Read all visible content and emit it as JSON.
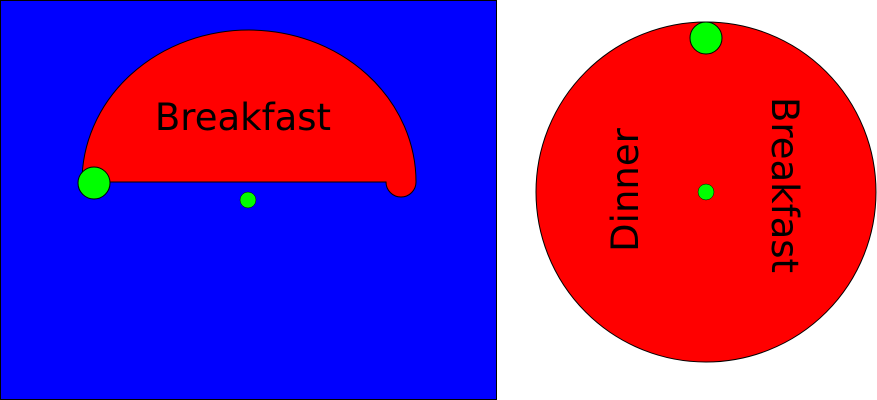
{
  "colors": {
    "background": "#0000ff",
    "disc": "#ff0000",
    "dot": "#00ff00",
    "outline": "#000000",
    "page": "#ffffff"
  },
  "left_panel": {
    "semicircle_label": "Breakfast"
  },
  "right_panel": {
    "label_dinner": "Dinner",
    "label_breakfast": "Breakfast"
  }
}
